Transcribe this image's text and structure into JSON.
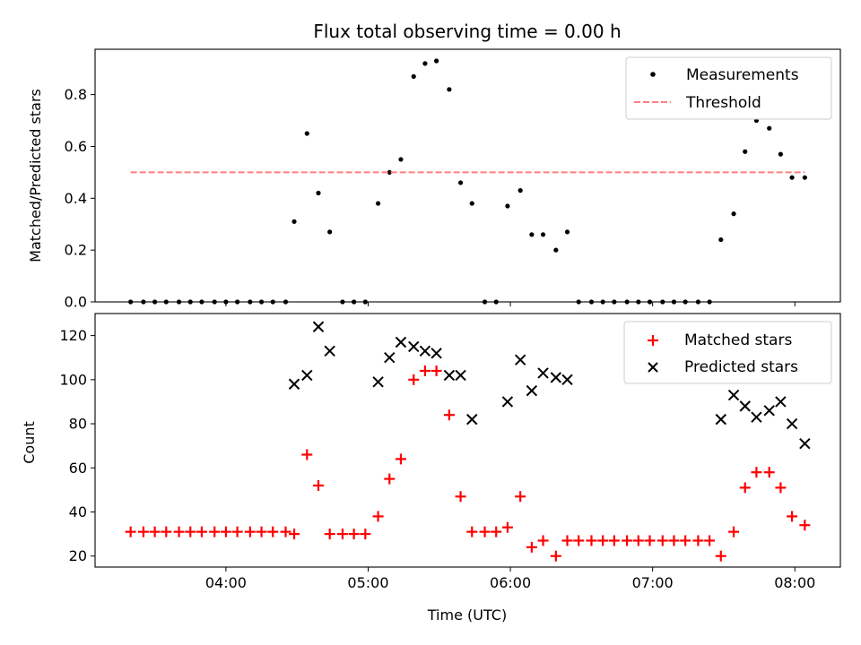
{
  "chart_data": [
    {
      "type": "scatter",
      "title": "Flux total observing time = 0.00 h",
      "ylabel": "Matched/Predicted stars",
      "xlabel": "",
      "x_unit": "hours UTC",
      "xlim": [
        3.08,
        8.32
      ],
      "ylim": [
        0,
        0.975
      ],
      "yticks": [
        0.0,
        0.2,
        0.4,
        0.6,
        0.8
      ],
      "ytick_labels": [
        "0.0",
        "0.2",
        "0.4",
        "0.6",
        "0.8"
      ],
      "legend_position": "top-right",
      "series": [
        {
          "name": "Measurements",
          "kind": "dot",
          "color": "#000000",
          "points": [
            [
              3.33,
              0.0
            ],
            [
              3.42,
              0.0
            ],
            [
              3.5,
              0.0
            ],
            [
              3.58,
              0.0
            ],
            [
              3.67,
              0.0
            ],
            [
              3.75,
              0.0
            ],
            [
              3.83,
              0.0
            ],
            [
              3.92,
              0.0
            ],
            [
              4.0,
              0.0
            ],
            [
              4.08,
              0.0
            ],
            [
              4.17,
              0.0
            ],
            [
              4.25,
              0.0
            ],
            [
              4.33,
              0.0
            ],
            [
              4.42,
              0.0
            ],
            [
              4.48,
              0.31
            ],
            [
              4.57,
              0.65
            ],
            [
              4.65,
              0.42
            ],
            [
              4.73,
              0.27
            ],
            [
              4.82,
              0.0
            ],
            [
              4.9,
              0.0
            ],
            [
              4.98,
              0.0
            ],
            [
              5.07,
              0.38
            ],
            [
              5.15,
              0.5
            ],
            [
              5.23,
              0.55
            ],
            [
              5.32,
              0.87
            ],
            [
              5.4,
              0.92
            ],
            [
              5.48,
              0.93
            ],
            [
              5.57,
              0.82
            ],
            [
              5.65,
              0.46
            ],
            [
              5.73,
              0.38
            ],
            [
              5.82,
              0.0
            ],
            [
              5.9,
              0.0
            ],
            [
              5.98,
              0.37
            ],
            [
              6.07,
              0.43
            ],
            [
              6.15,
              0.26
            ],
            [
              6.23,
              0.26
            ],
            [
              6.32,
              0.2
            ],
            [
              6.4,
              0.27
            ],
            [
              6.48,
              0.0
            ],
            [
              6.57,
              0.0
            ],
            [
              6.65,
              0.0
            ],
            [
              6.73,
              0.0
            ],
            [
              6.82,
              0.0
            ],
            [
              6.9,
              0.0
            ],
            [
              6.98,
              0.0
            ],
            [
              7.07,
              0.0
            ],
            [
              7.15,
              0.0
            ],
            [
              7.23,
              0.0
            ],
            [
              7.32,
              0.0
            ],
            [
              7.4,
              0.0
            ],
            [
              7.48,
              0.24
            ],
            [
              7.57,
              0.34
            ],
            [
              7.65,
              0.58
            ],
            [
              7.73,
              0.7
            ],
            [
              7.82,
              0.67
            ],
            [
              7.9,
              0.57
            ],
            [
              7.98,
              0.48
            ],
            [
              8.07,
              0.48
            ]
          ]
        },
        {
          "name": "Threshold",
          "kind": "dashed-line",
          "color": "#ff7f7f",
          "points": [
            [
              3.33,
              0.5
            ],
            [
              8.07,
              0.5
            ]
          ]
        }
      ]
    },
    {
      "type": "scatter",
      "title": "",
      "ylabel": "Count",
      "xlabel": "Time (UTC)",
      "x_unit": "hours UTC",
      "xlim": [
        3.08,
        8.32
      ],
      "ylim": [
        15,
        130
      ],
      "yticks": [
        20,
        40,
        60,
        80,
        100,
        120
      ],
      "ytick_labels": [
        "20",
        "40",
        "60",
        "80",
        "100",
        "120"
      ],
      "xticks": [
        4,
        5,
        6,
        7,
        8
      ],
      "xtick_labels": [
        "04:00",
        "05:00",
        "06:00",
        "07:00",
        "08:00"
      ],
      "legend_position": "top-right",
      "series": [
        {
          "name": "Matched stars",
          "kind": "plus",
          "color": "#ff0000",
          "points": [
            [
              3.33,
              31
            ],
            [
              3.42,
              31
            ],
            [
              3.5,
              31
            ],
            [
              3.58,
              31
            ],
            [
              3.67,
              31
            ],
            [
              3.75,
              31
            ],
            [
              3.83,
              31
            ],
            [
              3.92,
              31
            ],
            [
              4.0,
              31
            ],
            [
              4.08,
              31
            ],
            [
              4.17,
              31
            ],
            [
              4.25,
              31
            ],
            [
              4.33,
              31
            ],
            [
              4.42,
              31
            ],
            [
              4.48,
              30
            ],
            [
              4.57,
              66
            ],
            [
              4.65,
              52
            ],
            [
              4.73,
              30
            ],
            [
              4.82,
              30
            ],
            [
              4.9,
              30
            ],
            [
              4.98,
              30
            ],
            [
              5.07,
              38
            ],
            [
              5.15,
              55
            ],
            [
              5.23,
              64
            ],
            [
              5.32,
              100
            ],
            [
              5.4,
              104
            ],
            [
              5.48,
              104
            ],
            [
              5.57,
              84
            ],
            [
              5.65,
              47
            ],
            [
              5.73,
              31
            ],
            [
              5.82,
              31
            ],
            [
              5.9,
              31
            ],
            [
              5.98,
              33
            ],
            [
              6.07,
              47
            ],
            [
              6.15,
              24
            ],
            [
              6.23,
              27
            ],
            [
              6.32,
              20
            ],
            [
              6.4,
              27
            ],
            [
              6.48,
              27
            ],
            [
              6.57,
              27
            ],
            [
              6.65,
              27
            ],
            [
              6.73,
              27
            ],
            [
              6.82,
              27
            ],
            [
              6.9,
              27
            ],
            [
              6.98,
              27
            ],
            [
              7.07,
              27
            ],
            [
              7.15,
              27
            ],
            [
              7.23,
              27
            ],
            [
              7.32,
              27
            ],
            [
              7.4,
              27
            ],
            [
              7.48,
              20
            ],
            [
              7.57,
              31
            ],
            [
              7.65,
              51
            ],
            [
              7.73,
              58
            ],
            [
              7.82,
              58
            ],
            [
              7.9,
              51
            ],
            [
              7.98,
              38
            ],
            [
              8.07,
              34
            ]
          ]
        },
        {
          "name": "Predicted stars",
          "kind": "x",
          "color": "#000000",
          "points": [
            [
              4.48,
              98
            ],
            [
              4.57,
              102
            ],
            [
              4.65,
              124
            ],
            [
              4.73,
              113
            ],
            [
              5.07,
              99
            ],
            [
              5.15,
              110
            ],
            [
              5.23,
              117
            ],
            [
              5.32,
              115
            ],
            [
              5.4,
              113
            ],
            [
              5.48,
              112
            ],
            [
              5.57,
              102
            ],
            [
              5.65,
              102
            ],
            [
              5.73,
              82
            ],
            [
              5.98,
              90
            ],
            [
              6.07,
              109
            ],
            [
              6.15,
              95
            ],
            [
              6.23,
              103
            ],
            [
              6.32,
              101
            ],
            [
              6.4,
              100
            ],
            [
              7.48,
              82
            ],
            [
              7.57,
              93
            ],
            [
              7.65,
              88
            ],
            [
              7.73,
              83
            ],
            [
              7.82,
              86
            ],
            [
              7.9,
              90
            ],
            [
              7.98,
              80
            ],
            [
              8.07,
              71
            ]
          ]
        }
      ]
    }
  ]
}
